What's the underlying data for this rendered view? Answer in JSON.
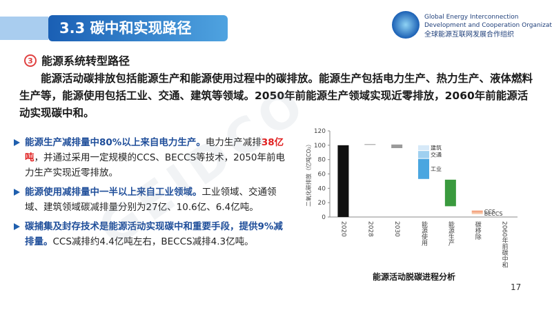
{
  "header": {
    "title": "3.3 碳中和实现路径",
    "org_en_1": "Global Energy Interconnection",
    "org_en_2": "Development and Cooperation Organization",
    "org_cn": "全球能源互联网发展合作组织",
    "watermark": "GEIDCO"
  },
  "section": {
    "icon": "3",
    "title": "能源系统转型路径",
    "paragraph": "能源活动碳排放包括能源生产和能源使用过程中的碳排放。能源生产包括电力生产、热力生产、液体燃料生产等，能源使用包括工业、交通、建筑等领域。2050年前能源生产领域实现近零排放，2060年前能源活动实现碳中和。"
  },
  "bullets": [
    {
      "parts": [
        {
          "text": "能源生产减排量中80%以上来自电力生产。",
          "style": "bold"
        },
        {
          "text": "电力生产减排",
          "style": "normal"
        },
        {
          "text": "38亿吨",
          "style": "red"
        },
        {
          "text": "，并通过采用一定规模的CCS、BECCS等技术，2050年前电力生产实现近零排放。",
          "style": "normal"
        }
      ]
    },
    {
      "parts": [
        {
          "text": "能源使用减排量中一半以上来自工业领域。",
          "style": "bold"
        },
        {
          "text": "工业领域、交通领域、建筑领域碳减排量分别为27亿、10.6亿、6.4亿吨。",
          "style": "normal"
        }
      ]
    },
    {
      "parts": [
        {
          "text": "碳捕集及封存技术是能源活动实现碳中和重要手段，提供9%减排量。",
          "style": "bold"
        },
        {
          "text": "CCS减排约4.4亿吨左右，BECCS减排4.3亿吨。",
          "style": "normal"
        }
      ]
    }
  ],
  "page_number": 17,
  "chart_data": {
    "type": "floating-bar",
    "caption": "能源活动脱碳进程分析",
    "y_label": "二氧化碳排放（亿吨CO₂）",
    "categories": [
      "2020",
      "2028",
      "2030",
      "能源使用",
      "能源生产",
      "碳移除",
      "2060年前碳中和"
    ],
    "ylim": [
      0,
      120
    ],
    "yticks": [
      0,
      20,
      40,
      60,
      80,
      100,
      120
    ],
    "series": [
      {
        "color": "#111111",
        "values": [
          [
            0,
            100
          ],
          null,
          null,
          null,
          null,
          null,
          null
        ]
      },
      {
        "color": "#9a9a9a",
        "values": [
          null,
          [
            100.5,
            101.5
          ],
          [
            96,
            101
          ],
          null,
          null,
          null,
          null
        ]
      },
      {
        "name": "建筑",
        "color": "#d6e9f8",
        "values": [
          null,
          null,
          null,
          [
            93,
            100
          ],
          null,
          null,
          null
        ]
      },
      {
        "name": "交通",
        "color": "#9fd0f0",
        "values": [
          null,
          null,
          null,
          [
            82,
            92
          ],
          null,
          null,
          null
        ]
      },
      {
        "name": "工业",
        "color": "#4aa6e0",
        "values": [
          null,
          null,
          null,
          [
            53,
            81
          ],
          null,
          null,
          null
        ]
      },
      {
        "color": "#3a9a3e",
        "values": [
          null,
          null,
          null,
          null,
          [
            15,
            52
          ],
          null,
          null
        ]
      },
      {
        "name": "CCS",
        "color": "#f4a582",
        "values": [
          null,
          null,
          null,
          null,
          null,
          [
            6,
            9
          ],
          null
        ]
      },
      {
        "name": "BECCS",
        "color": "#f8cbad",
        "values": [
          null,
          null,
          null,
          null,
          null,
          [
            4,
            6
          ],
          null
        ]
      }
    ]
  }
}
